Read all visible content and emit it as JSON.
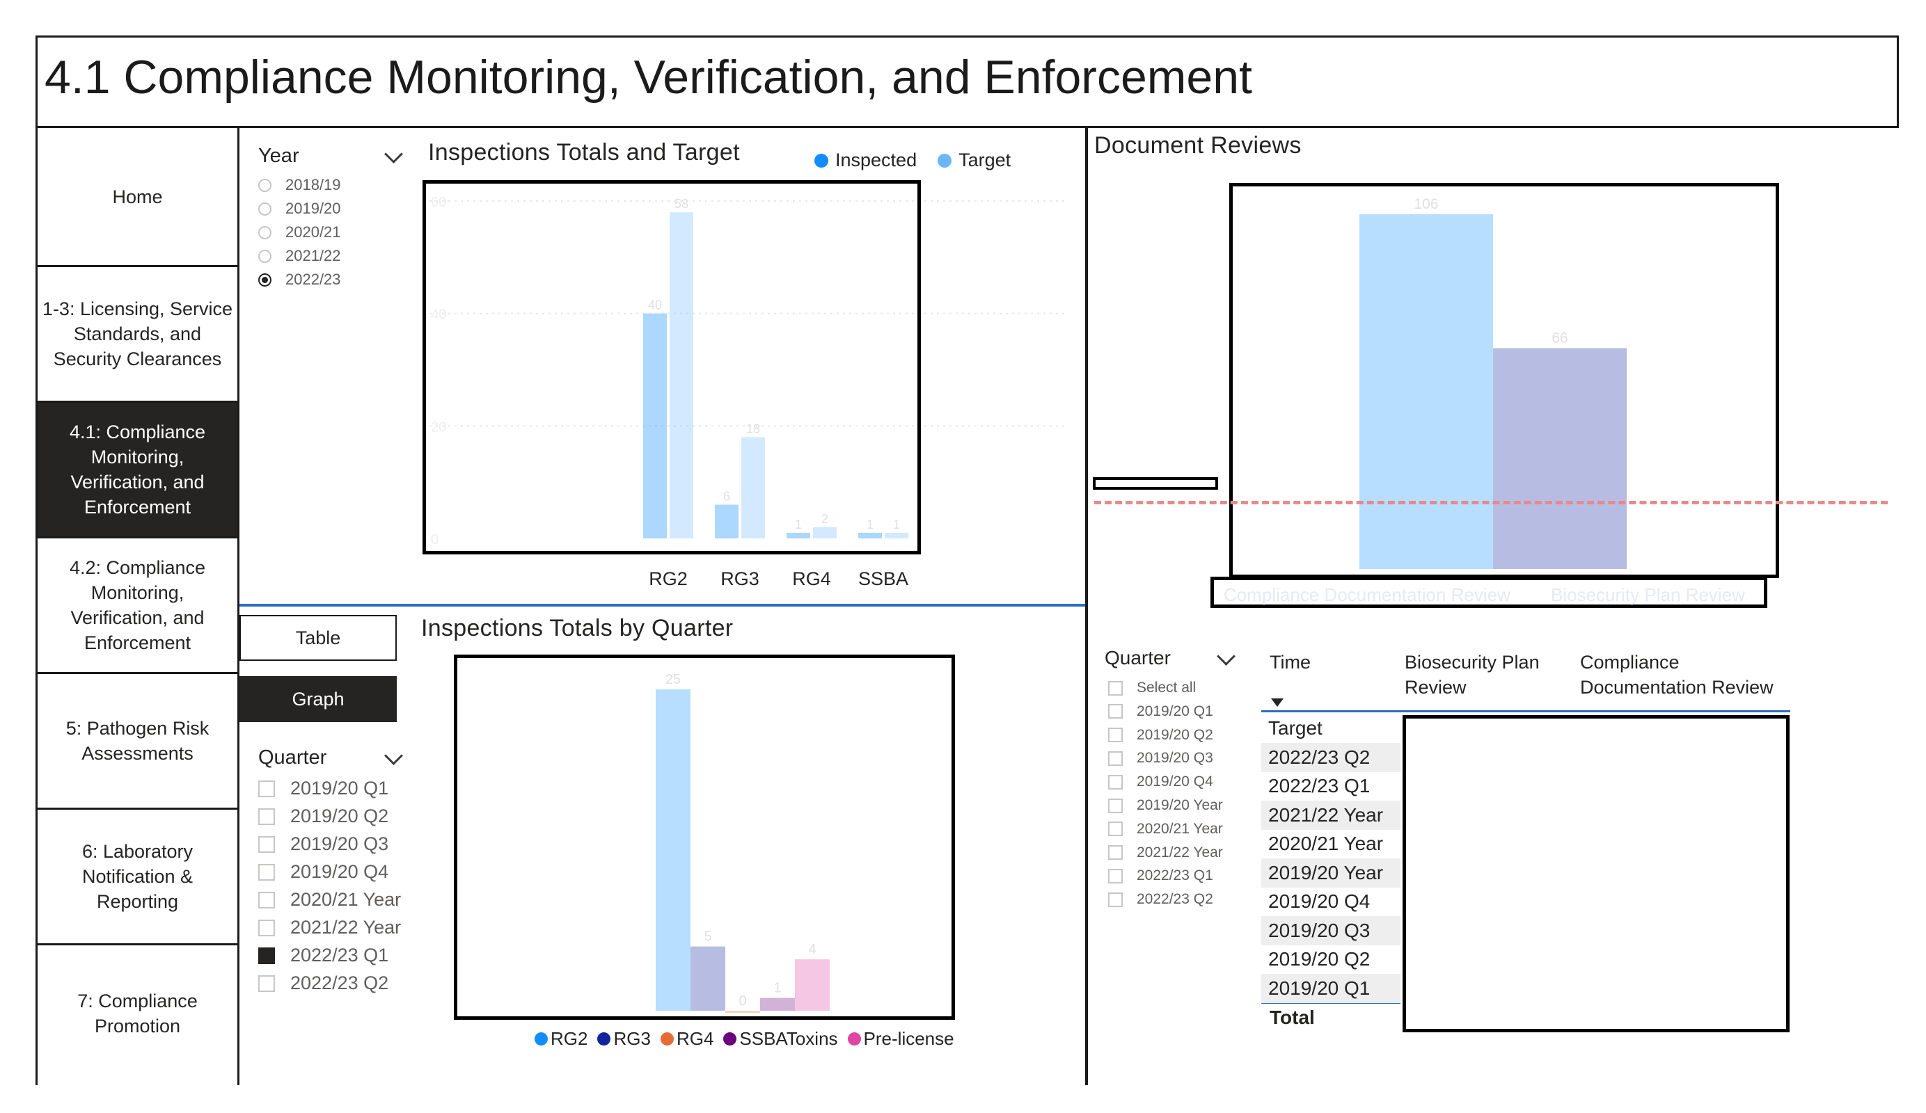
{
  "page": {
    "title": "4.1 Compliance Monitoring, Verification, and Enforcement"
  },
  "nav": {
    "items": [
      {
        "label": "Home",
        "active": false
      },
      {
        "label": "1-3: Licensing, Service Standards, and Security Clearances",
        "active": false
      },
      {
        "label": "4.1: Compliance Monitoring, Verification, and Enforcement",
        "active": true
      },
      {
        "label": "4.2: Compliance Monitoring, Verification, and Enforcement",
        "active": false
      },
      {
        "label": "5: Pathogen Risk Assessments",
        "active": false
      },
      {
        "label": "6: Laboratory Notification & Reporting",
        "active": false
      },
      {
        "label": "7: Compliance Promotion",
        "active": false
      }
    ]
  },
  "year_slicer": {
    "title": "Year",
    "options": [
      {
        "label": "2018/19",
        "selected": false
      },
      {
        "label": "2019/20",
        "selected": false
      },
      {
        "label": "2020/21",
        "selected": false
      },
      {
        "label": "2021/22",
        "selected": false
      },
      {
        "label": "2022/23",
        "selected": true
      }
    ]
  },
  "view_buttons": {
    "table_label": "Table",
    "graph_label": "Graph",
    "active": "Graph"
  },
  "quarter_slicer_left": {
    "title": "Quarter",
    "options": [
      {
        "label": "2019/20 Q1",
        "selected": false
      },
      {
        "label": "2019/20 Q2",
        "selected": false
      },
      {
        "label": "2019/20 Q3",
        "selected": false
      },
      {
        "label": "2019/20 Q4",
        "selected": false
      },
      {
        "label": "2020/21 Year",
        "selected": false
      },
      {
        "label": "2021/22 Year",
        "selected": false
      },
      {
        "label": "2022/23 Q1",
        "selected": true
      },
      {
        "label": "2022/23 Q2",
        "selected": false
      }
    ]
  },
  "quarter_slicer_right": {
    "title": "Quarter",
    "options": [
      {
        "label": "Select all",
        "selected": false
      },
      {
        "label": "2019/20 Q1",
        "selected": false
      },
      {
        "label": "2019/20 Q2",
        "selected": false
      },
      {
        "label": "2019/20 Q3",
        "selected": false
      },
      {
        "label": "2019/20 Q4",
        "selected": false
      },
      {
        "label": "2019/20 Year",
        "selected": false
      },
      {
        "label": "2020/21 Year",
        "selected": false
      },
      {
        "label": "2021/22 Year",
        "selected": false
      },
      {
        "label": "2022/23 Q1",
        "selected": false
      },
      {
        "label": "2022/23 Q2",
        "selected": false
      }
    ]
  },
  "chart_data": [
    {
      "type": "bar",
      "title": "Inspections Totals and Target",
      "categories": [
        "RG2",
        "RG3",
        "RG4",
        "SSBA"
      ],
      "series": [
        {
          "name": "Inspected",
          "values": [
            40,
            6,
            1,
            1
          ]
        },
        {
          "name": "Target",
          "values": [
            58,
            18,
            2,
            1
          ]
        }
      ],
      "ylim": [
        0,
        60
      ],
      "yticks": [
        0,
        20,
        40,
        60
      ],
      "legend": "top-right",
      "colors": [
        "#118dff",
        "#6cb6ff"
      ]
    },
    {
      "type": "bar",
      "title": "Inspections Totals by Quarter",
      "categories": [
        "RG2",
        "RG3",
        "RG4",
        "SSBAToxins",
        "Pre-license"
      ],
      "values": [
        25,
        5,
        0,
        1,
        4
      ],
      "legend": "bottom",
      "colors": [
        "#118dff",
        "#12239e",
        "#e66c37",
        "#6b007b",
        "#e044a7"
      ]
    },
    {
      "type": "bar",
      "title": "Document Reviews",
      "categories": [
        "Compliance Documentation Review",
        "Biosecurity Plan Review"
      ],
      "values": [
        106,
        66
      ],
      "legend": "bottom",
      "colors": [
        "#118dff",
        "#12239e"
      ]
    }
  ],
  "doc_table": {
    "headers": [
      "Time",
      "Biosecurity Plan Review",
      "Compliance Documentation Review"
    ],
    "rows": [
      "Target",
      "2022/23 Q2",
      "2022/23 Q1",
      "2021/22 Year",
      "2020/21 Year",
      "2019/20 Year",
      "2019/20 Q4",
      "2019/20 Q3",
      "2019/20 Q2",
      "2019/20 Q1"
    ],
    "total_label": "Total"
  }
}
